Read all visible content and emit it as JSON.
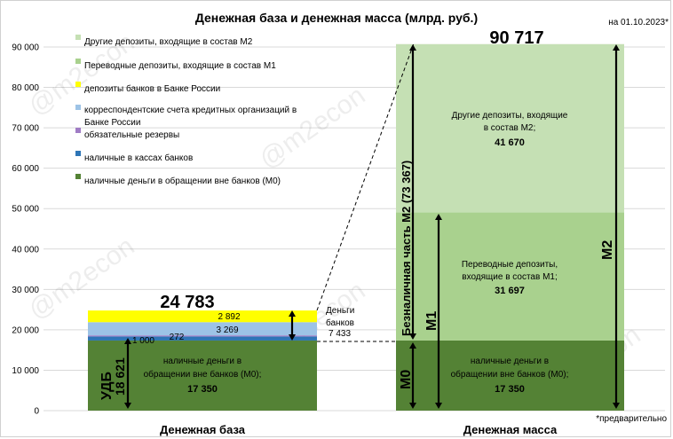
{
  "chart_data": {
    "type": "bar",
    "title": "Денежная база и денежная масса (млрд. руб.)",
    "date_note": "на 01.10.2023*",
    "footnote": "*предварительно",
    "watermark": "@m2econ",
    "ylim": [
      0,
      90000
    ],
    "yticks": [
      0,
      10000,
      20000,
      30000,
      40000,
      50000,
      60000,
      70000,
      80000,
      90000
    ],
    "ytick_labels": [
      "0",
      "10 000",
      "20 000",
      "30 000",
      "40 000",
      "50 000",
      "60 000",
      "70 000",
      "80 000",
      "90 000"
    ],
    "categories": [
      "Денежная база",
      "Денежная масса"
    ],
    "series": [
      {
        "name": "наличные деньги в обращении вне банков (М0)",
        "color": "#548235",
        "values": [
          17350,
          17350
        ],
        "labels": [
          "наличные деньги в обращении вне банков (М0); 17 350",
          "наличные деньги в обращении вне банков (М0); 17 350"
        ]
      },
      {
        "name": "наличные в кассах банков",
        "color": "#2e75b6",
        "values": [
          1000,
          0
        ],
        "labels": [
          "1 000",
          ""
        ]
      },
      {
        "name": "обязательные резервы",
        "color": "#a07cc5",
        "values": [
          272,
          0
        ],
        "labels": [
          "272",
          ""
        ]
      },
      {
        "name": "корреспондентские счета кредитных организаций в Банке России",
        "color": "#9dc3e6",
        "values": [
          3269,
          0
        ],
        "labels": [
          "3 269",
          ""
        ]
      },
      {
        "name": "депозиты банков в Банке России",
        "color": "#ffff00",
        "values": [
          2892,
          0
        ],
        "labels": [
          "2 892",
          ""
        ]
      },
      {
        "name": "Переводные депозиты, входящие в состав М1",
        "color": "#a9d18e",
        "values": [
          0,
          31697
        ],
        "labels": [
          "",
          "Переводные депозиты, входящие в состав М1; 31 697"
        ]
      },
      {
        "name": "Другие депозиты, входящие в состав М2",
        "color": "#c5e0b4",
        "values": [
          0,
          41670
        ],
        "labels": [
          "",
          "Другие депозиты, входящие в состав М2; 41 670"
        ]
      }
    ],
    "totals": [
      "24 783",
      "90 717"
    ],
    "annotations": {
      "money_banks_label": "Деньги банков",
      "money_banks_value": "7 433",
      "udb_label": "УДБ",
      "udb_value": "18 621",
      "m0_label": "М0",
      "m1_label": "М1",
      "m2_label": "М2",
      "noncash_label": "Безналичная часть М2 (73 367)"
    },
    "legend_position": "top-left, inside plot"
  }
}
